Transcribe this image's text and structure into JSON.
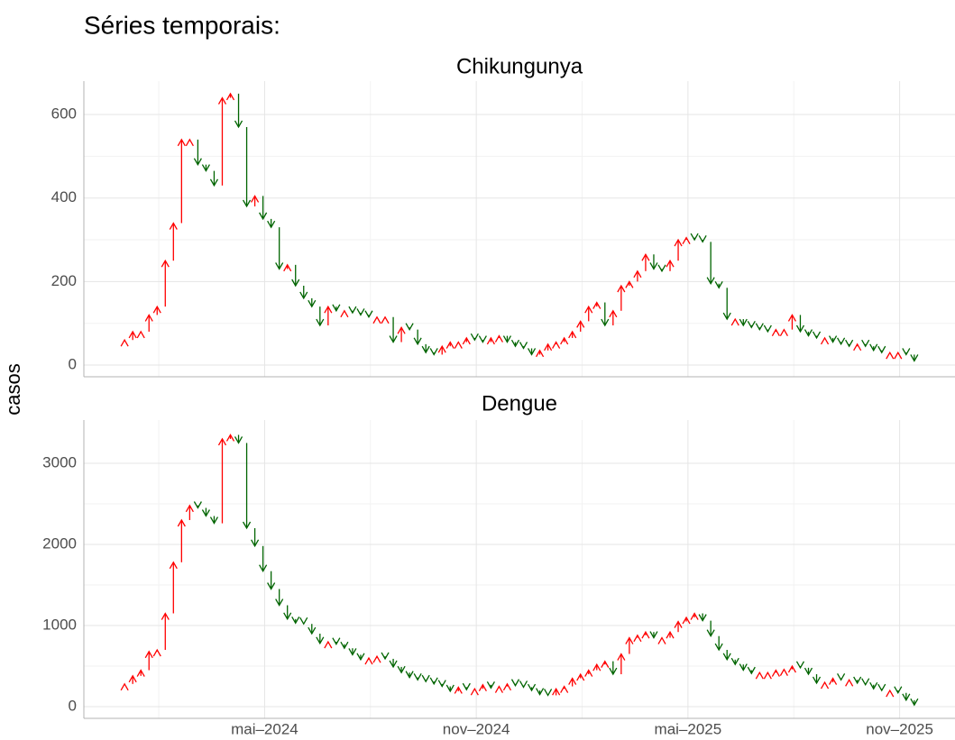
{
  "title": "Séries temporais:",
  "y_label": "casos",
  "chart_data": [
    {
      "type": "arrow",
      "title": "Chikungunya",
      "increase_color": "#ff0000",
      "decrease_color": "#006400",
      "grid": true,
      "x": [
        0,
        1,
        2,
        3,
        4,
        5,
        6,
        7,
        8,
        9,
        10,
        11,
        12,
        13,
        14,
        15,
        16,
        17,
        18,
        19,
        20,
        21,
        22,
        23,
        24,
        25,
        26,
        27,
        28,
        29,
        30,
        31,
        32,
        33,
        34,
        35,
        36,
        37,
        38,
        39,
        40,
        41,
        42,
        43,
        44,
        45,
        46,
        47,
        48,
        49,
        50,
        51,
        52,
        53,
        54,
        55,
        56,
        57,
        58,
        59,
        60,
        61,
        62,
        63,
        64,
        65,
        66,
        67,
        68,
        69,
        70,
        71,
        72,
        73,
        74,
        75,
        76,
        77,
        78,
        79,
        80,
        81,
        82,
        83,
        84,
        85,
        86,
        87,
        88,
        89,
        90,
        91,
        92,
        93,
        94,
        95,
        96,
        97
      ],
      "values": [
        60,
        80,
        80,
        120,
        140,
        250,
        340,
        540,
        540,
        480,
        465,
        430,
        640,
        650,
        570,
        380,
        405,
        350,
        330,
        230,
        240,
        190,
        160,
        140,
        95,
        140,
        130,
        130,
        125,
        120,
        115,
        115,
        115,
        55,
        90,
        85,
        50,
        30,
        25,
        45,
        55,
        55,
        65,
        60,
        55,
        65,
        70,
        55,
        45,
        40,
        25,
        35,
        50,
        55,
        65,
        80,
        105,
        140,
        150,
        95,
        130,
        190,
        200,
        225,
        265,
        230,
        225,
        250,
        300,
        305,
        300,
        295,
        195,
        185,
        110,
        110,
        95,
        90,
        85,
        80,
        85,
        85,
        120,
        80,
        70,
        65,
        65,
        55,
        50,
        45,
        50,
        45,
        35,
        30,
        30,
        30,
        25,
        10
      ],
      "ylim": [
        -28,
        680
      ],
      "yticks": [
        0,
        200,
        400,
        600
      ]
    },
    {
      "type": "arrow",
      "title": "Dengue",
      "increase_color": "#ff0000",
      "decrease_color": "#006400",
      "grid": true,
      "x": [
        0,
        1,
        2,
        3,
        4,
        5,
        6,
        7,
        8,
        9,
        10,
        11,
        12,
        13,
        14,
        15,
        16,
        17,
        18,
        19,
        20,
        21,
        22,
        23,
        24,
        25,
        26,
        27,
        28,
        29,
        30,
        31,
        32,
        33,
        34,
        35,
        36,
        37,
        38,
        39,
        40,
        41,
        42,
        43,
        44,
        45,
        46,
        47,
        48,
        49,
        50,
        51,
        52,
        53,
        54,
        55,
        56,
        57,
        58,
        59,
        60,
        61,
        62,
        63,
        64,
        65,
        66,
        67,
        68,
        69,
        70,
        71,
        72,
        73,
        74,
        75,
        76,
        77,
        78,
        79,
        80,
        81,
        82,
        83,
        84,
        85,
        86,
        87,
        88,
        89,
        90,
        91,
        92,
        93,
        94,
        95,
        96,
        97
      ],
      "values": [
        280,
        380,
        450,
        680,
        700,
        1150,
        1780,
        2300,
        2480,
        2450,
        2350,
        2260,
        3300,
        3350,
        3250,
        2200,
        1980,
        1670,
        1450,
        1250,
        1080,
        1030,
        1020,
        900,
        780,
        800,
        770,
        720,
        640,
        580,
        600,
        620,
        590,
        490,
        420,
        360,
        330,
        310,
        280,
        250,
        190,
        240,
        210,
        220,
        270,
        230,
        250,
        280,
        260,
        240,
        200,
        150,
        140,
        220,
        250,
        350,
        400,
        450,
        520,
        560,
        400,
        650,
        850,
        880,
        920,
        850,
        850,
        920,
        1050,
        1100,
        1150,
        1060,
        870,
        700,
        580,
        520,
        450,
        410,
        420,
        420,
        450,
        460,
        500,
        480,
        400,
        290,
        300,
        350,
        330,
        330,
        290,
        270,
        220,
        200,
        200,
        170,
        80,
        20
      ],
      "ylim": [
        -144,
        3533
      ],
      "yticks": [
        0,
        1000,
        2000,
        3000
      ],
      "xlim": [
        -5,
        102
      ],
      "xticks": [
        {
          "value": 17.2,
          "label": "mai–2024"
        },
        {
          "value": 43.2,
          "label": "nov–2024"
        },
        {
          "value": 69.2,
          "label": "mai–2025"
        },
        {
          "value": 95.2,
          "label": "nov–2025"
        }
      ]
    }
  ]
}
